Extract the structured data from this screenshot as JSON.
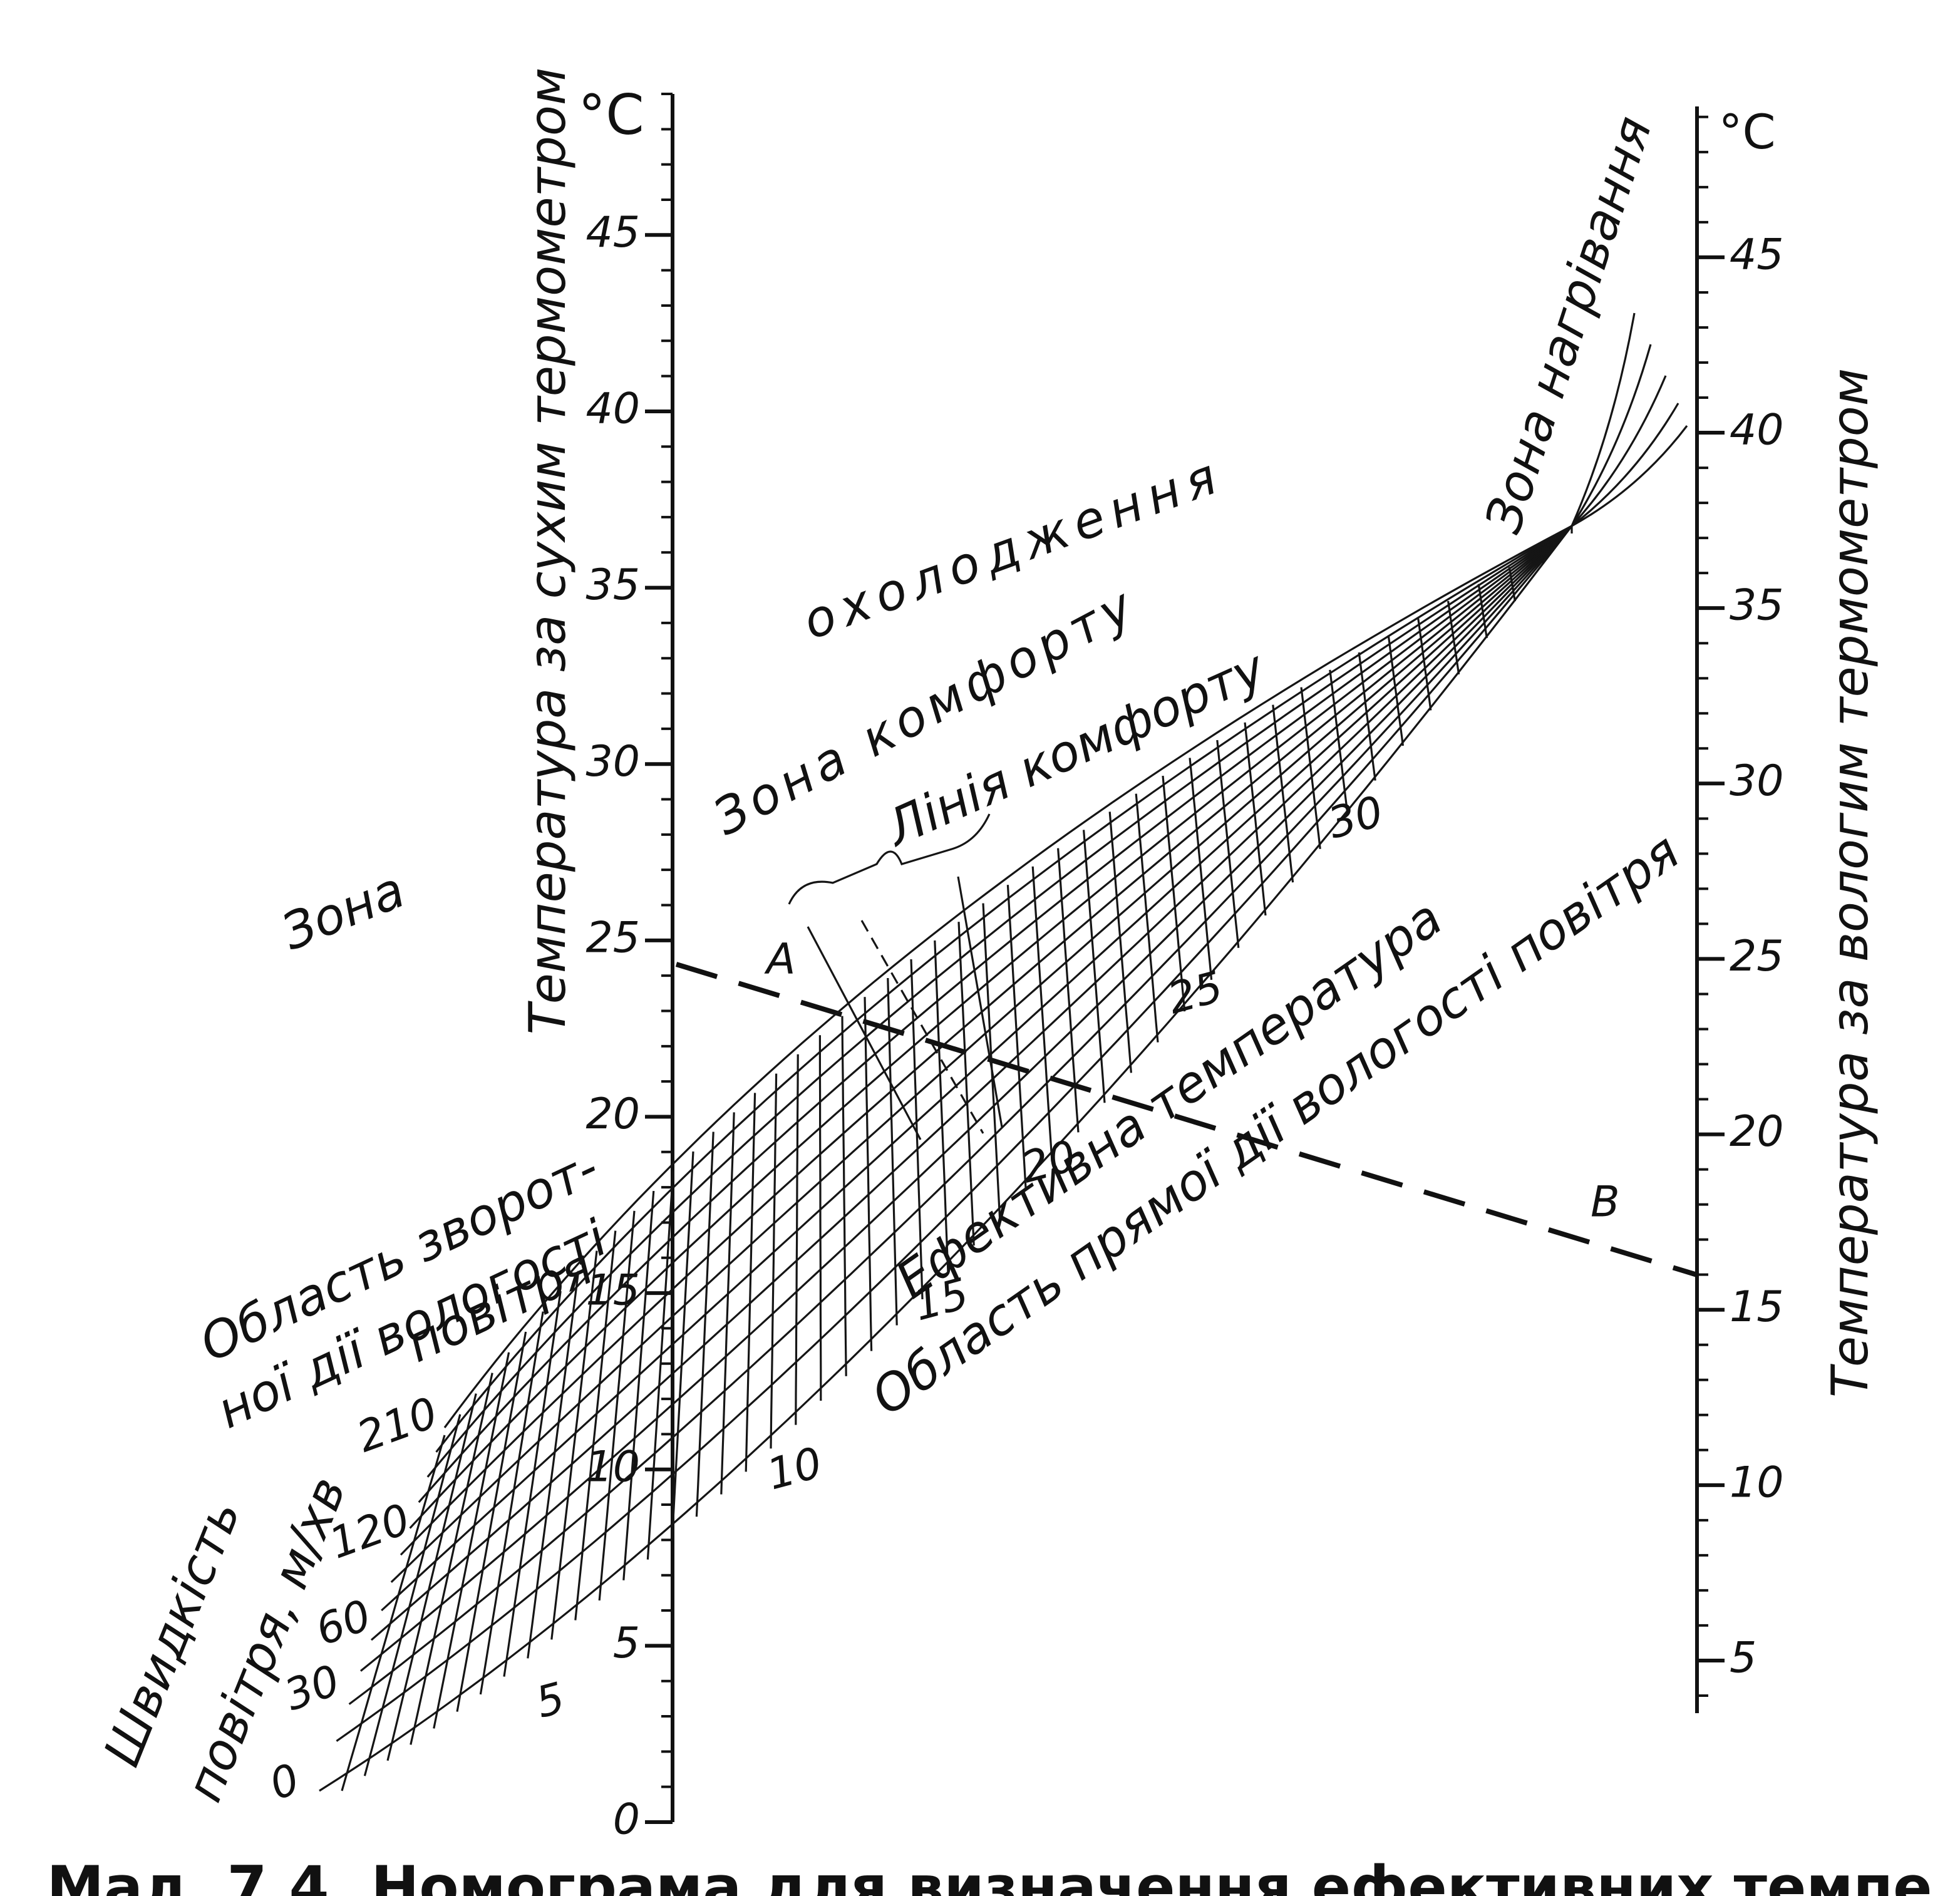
{
  "left_axis": {
    "title": "Температура за сухим термометром",
    "unit": "°C",
    "ylim": [
      0,
      49
    ],
    "yticks": [
      0,
      5,
      10,
      15,
      20,
      25,
      30,
      35,
      40,
      45
    ]
  },
  "right_axis": {
    "title": "Температура за вологим термометром",
    "unit": "°C",
    "ylim": [
      3.5,
      49.3
    ],
    "yticks": [
      5,
      10,
      15,
      20,
      25,
      30,
      35,
      40,
      45
    ]
  },
  "labels": {
    "zone_cooling_1": "Зона",
    "zone_cooling_2": "охолодження",
    "zone_comfort": "Зона комфорту",
    "comfort_line": "Лінія комфорту",
    "zone_heating": "Зона нагрівання",
    "reverse_1": "Область зворот-",
    "reverse_2": "ної дії вологості",
    "reverse_3": "повітря",
    "effective_temperature": "Ефективна температура",
    "direct": "Область прямої дії вологості повітря",
    "velocity_1": "Швидкість",
    "velocity_2": "повітря, м/хв"
  },
  "velocity_labels": [
    0,
    30,
    60,
    120,
    210
  ],
  "effective_temperature_labels": [
    5,
    10,
    15,
    20,
    25,
    30
  ],
  "points": [
    "A",
    "B"
  ],
  "caption": "Мал. 7.4. Номограма для визначення ефективних темпе"
}
